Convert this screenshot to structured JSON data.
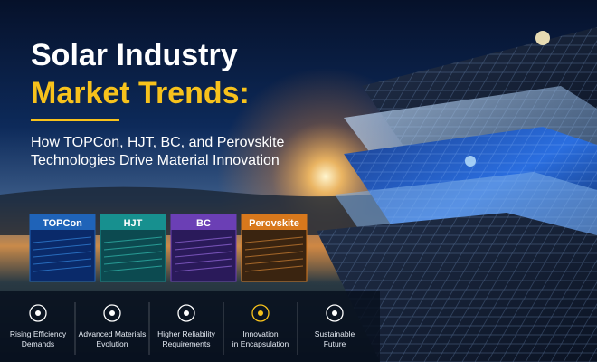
{
  "header": {
    "title_line1": "Solar Industry",
    "title_line2": "Market Trends:",
    "subtitle": [
      "How TOPCon, HJT, BC, and Perovskite",
      "Technologies Drive Material Innovation"
    ]
  },
  "technologies": [
    "TOPCon",
    "HJT",
    "BC",
    "Perovskite"
  ],
  "drivers": [
    [
      "Rising Efficiency",
      "Demands"
    ],
    [
      "Advanced Materials",
      "Evolution"
    ],
    [
      "Higher Reliability",
      "Requirements"
    ],
    [
      "Innovation",
      "in Encapsulation"
    ],
    [
      "Sustainable",
      "Future"
    ]
  ]
}
